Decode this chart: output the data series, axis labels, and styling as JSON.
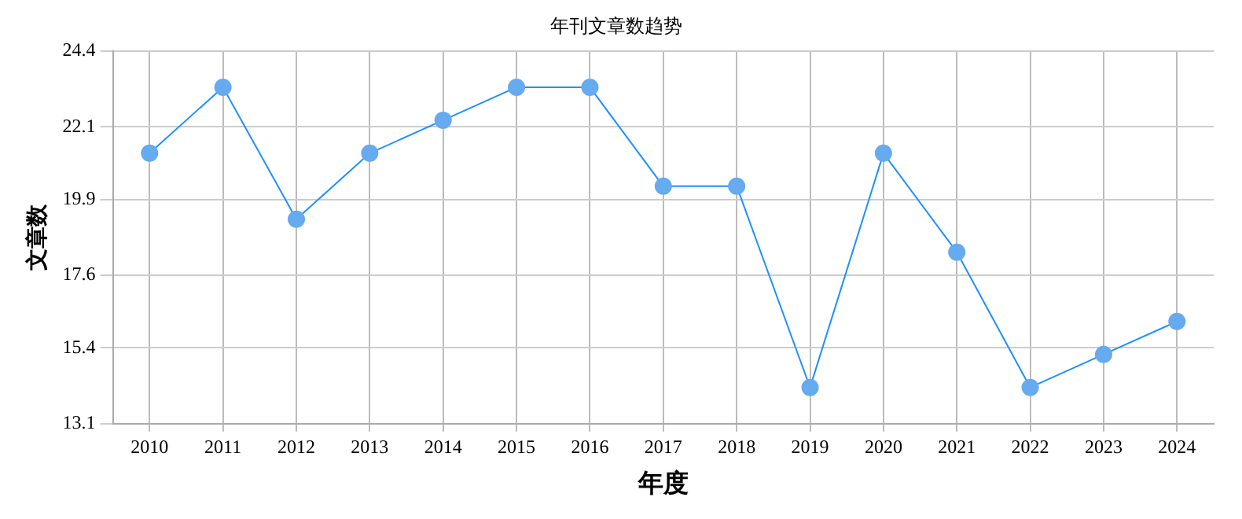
{
  "chart_data": {
    "type": "line",
    "title": "年刊文章数趋势",
    "xlabel": "年度",
    "ylabel": "文章数",
    "categories": [
      "2010",
      "2011",
      "2012",
      "2013",
      "2014",
      "2015",
      "2016",
      "2017",
      "2018",
      "2019",
      "2020",
      "2021",
      "2022",
      "2023",
      "2024"
    ],
    "series": [
      {
        "color": "#1e90ff",
        "values": [
          21.3,
          23.3,
          19.3,
          21.3,
          22.3,
          23.3,
          23.3,
          20.3,
          20.3,
          14.2,
          21.3,
          18.3,
          14.2,
          15.2,
          16.2
        ]
      }
    ],
    "ylim": [
      13.1,
      24.4
    ],
    "yticks": [
      13.1,
      15.4,
      17.6,
      19.9,
      22.1,
      24.4
    ],
    "grid": true,
    "legend": false,
    "marker": "circle",
    "line_style": "solid"
  }
}
